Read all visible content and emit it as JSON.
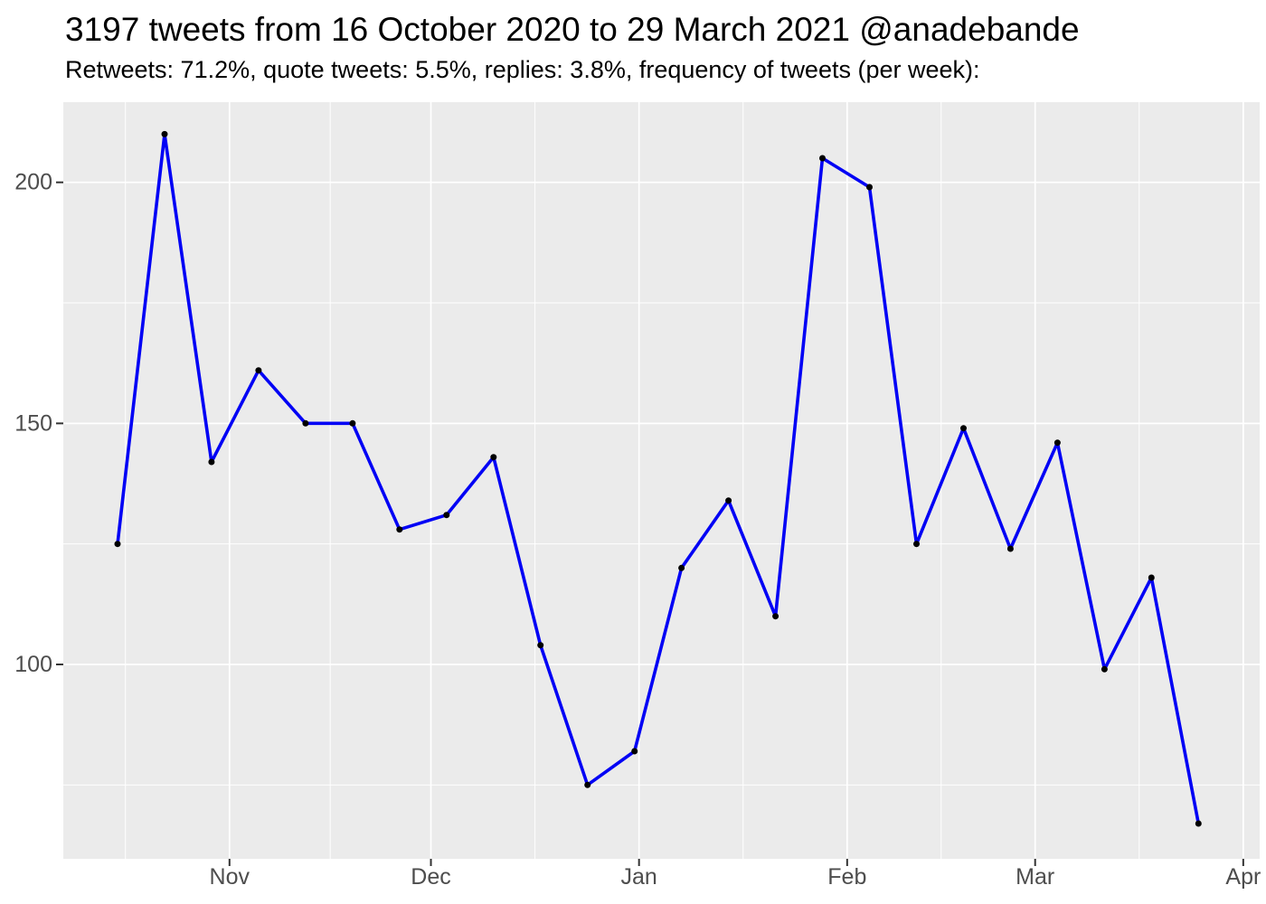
{
  "header": {
    "title": "3197 tweets from 16 October 2020 to 29 March 2021 @anadebande",
    "subtitle": "Retweets: 71.2%, quote tweets: 5.5%, replies: 3.8%, frequency of tweets (per week):"
  },
  "stats_shown": {
    "total_tweets": 3197,
    "retweets_pct": "71.2%",
    "quote_tweets_pct": "5.5%",
    "replies_pct": "3.8%",
    "date_range": "16 October 2020 to 29 March 2021",
    "account": "@anadebande"
  },
  "chart_data": {
    "type": "line",
    "title": "3197 tweets from 16 October 2020 to 29 March 2021 @anadebande",
    "subtitle": "Retweets: 71.2%, quote tweets: 5.5%, replies: 3.8%, frequency of tweets (per week):",
    "x_unit": "week",
    "x": [
      "2020-10-16",
      "2020-10-23",
      "2020-10-30",
      "2020-11-06",
      "2020-11-13",
      "2020-11-20",
      "2020-11-27",
      "2020-12-04",
      "2020-12-11",
      "2020-12-18",
      "2020-12-25",
      "2021-01-01",
      "2021-01-08",
      "2021-01-15",
      "2021-01-22",
      "2021-01-29",
      "2021-02-05",
      "2021-02-12",
      "2021-02-19",
      "2021-02-26",
      "2021-03-05",
      "2021-03-12",
      "2021-03-19",
      "2021-03-26"
    ],
    "series": [
      {
        "name": "tweets per week",
        "values": [
          125,
          210,
          142,
          161,
          150,
          150,
          128,
          131,
          143,
          104,
          75,
          82,
          120,
          134,
          110,
          205,
          199,
          125,
          149,
          124,
          146,
          99,
          118,
          67
        ]
      }
    ],
    "xlabel": "",
    "ylabel": "",
    "x_tick_labels": [
      "Nov",
      "Dec",
      "Jan",
      "Feb",
      "Mar",
      "Apr"
    ],
    "y_ticks": [
      200,
      150,
      100
    ],
    "y_minor_ticks": [
      175,
      125,
      75
    ],
    "ylim_panel": [
      60,
      217
    ],
    "grid": "major-and-minor",
    "legend": "none",
    "style": {
      "line_color": "#0000F5",
      "point_color": "#000000",
      "panel_background": "#EBEBEB",
      "grid_color": "#FFFFFF",
      "axis_text_color": "#4D4D4D",
      "tick_mark_color": "#333333",
      "title_color": "#000000"
    }
  }
}
